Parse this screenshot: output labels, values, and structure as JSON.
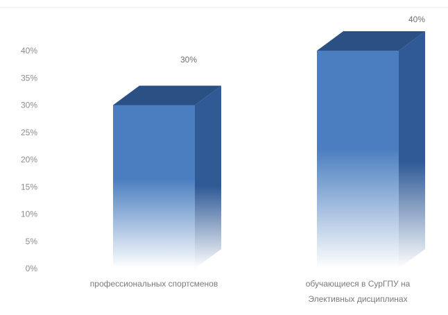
{
  "chart_data": {
    "type": "bar",
    "style": "3d-column",
    "categories": [
      [
        "профессиональных спортсменов"
      ],
      [
        "обучающиеся в СурГПУ на",
        "Элективных дисциплинах"
      ]
    ],
    "values": [
      30,
      40
    ],
    "data_labels": [
      "30%",
      "40%"
    ],
    "y_ticks": [
      "0%",
      "5%",
      "10%",
      "15%",
      "20%",
      "25%",
      "30%",
      "35%",
      "40%"
    ],
    "ylim": [
      0,
      40
    ],
    "grid": false,
    "legend": "none",
    "colors": {
      "front_top": "#4a7ec0",
      "front_bottom": "#ffffff",
      "side": "#2f5a96",
      "top": "#2b5083",
      "text": "#7f7f7f"
    }
  }
}
